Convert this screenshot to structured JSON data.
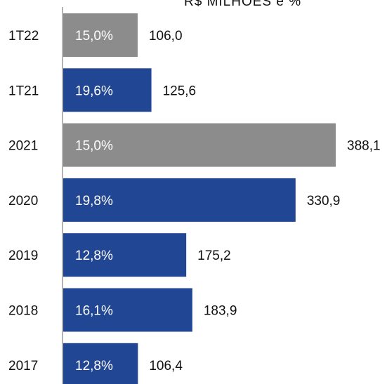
{
  "chart_data": {
    "type": "bar",
    "orientation": "horizontal",
    "title_fragment": "R$ MILHÕES  e  %",
    "categories": [
      "1T22",
      "1T21",
      "2021",
      "2020",
      "2019",
      "2018",
      "2017"
    ],
    "values": [
      106.0,
      125.6,
      388.1,
      330.9,
      175.2,
      183.9,
      106.4
    ],
    "value_labels": [
      "106,0",
      "125,6",
      "388,1",
      "330,9",
      "175,2",
      "183,9",
      "106,4"
    ],
    "percent_labels": [
      "15,0%",
      "19,6%",
      "15,0%",
      "19,8%",
      "12,8%",
      "16,1%",
      "12,8%"
    ],
    "bar_colors": [
      "#8c8c8c",
      "#214694",
      "#8c8c8c",
      "#214694",
      "#214694",
      "#214694",
      "#214694"
    ],
    "xlim": [
      0,
      400
    ],
    "grid": false,
    "legend": "none"
  }
}
